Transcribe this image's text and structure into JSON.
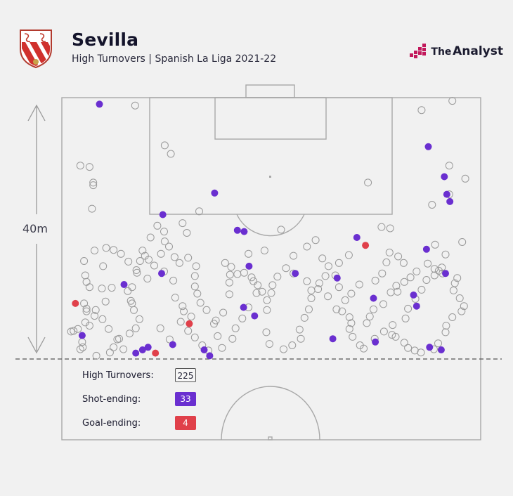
{
  "header": {
    "title": "Sevilla",
    "subtitle": "High Turnovers | Spanish La Liga 2021-22",
    "brand_prefix": "The",
    "brand_name": "Analyst"
  },
  "annotation": {
    "distance_label": "40m"
  },
  "legend": {
    "total_label": "High Turnovers:",
    "total_value": "225",
    "shot_label": "Shot-ending:",
    "shot_value": "33",
    "goal_label": "Goal-ending:",
    "goal_value": "4"
  },
  "colors": {
    "shot": "#6a2fd0",
    "goal": "#e0404a",
    "open": "#9a9a9a",
    "line": "#a8a8a8"
  },
  "chart_data": {
    "type": "scatter",
    "x_axis": "pitch width (m)",
    "y_axis": "distance from goal line (m)",
    "xlim": [
      0,
      68
    ],
    "ylim": [
      0,
      40
    ],
    "series": [
      {
        "name": "Goal-ending",
        "points": [
          [
            2.2,
            8.5
          ],
          [
            20.7,
            5.4
          ],
          [
            15.2,
            0.9
          ],
          [
            49.3,
            17.4
          ]
        ]
      },
      {
        "name": "Shot-ending",
        "points": [
          [
            6.1,
            39.0
          ],
          [
            24.8,
            25.4
          ],
          [
            16.4,
            22.1
          ],
          [
            28.5,
            19.7
          ],
          [
            29.6,
            19.5
          ],
          [
            30.4,
            14.2
          ],
          [
            37.9,
            13.1
          ],
          [
            47.9,
            18.6
          ],
          [
            50.6,
            9.3
          ],
          [
            44.7,
            12.4
          ],
          [
            29.5,
            7.9
          ],
          [
            31.3,
            6.6
          ],
          [
            16.2,
            13.1
          ],
          [
            10.1,
            11.4
          ],
          [
            3.3,
            3.6
          ],
          [
            14.0,
            1.8
          ],
          [
            13.1,
            1.4
          ],
          [
            12.0,
            0.9
          ],
          [
            18.0,
            2.2
          ],
          [
            23.1,
            1.4
          ],
          [
            24.0,
            0.5
          ],
          [
            44.0,
            3.1
          ],
          [
            50.9,
            2.6
          ],
          [
            59.7,
            1.8
          ],
          [
            61.6,
            1.4
          ],
          [
            57.6,
            8.1
          ],
          [
            57.1,
            9.8
          ],
          [
            59.2,
            16.8
          ],
          [
            59.5,
            32.5
          ],
          [
            62.1,
            27.9
          ],
          [
            62.5,
            25.2
          ],
          [
            63.0,
            24.1
          ],
          [
            62.3,
            13.1
          ]
        ]
      },
      {
        "name": "High Turnovers",
        "points": [
          [
            11.9,
            38.8
          ],
          [
            63.4,
            39.5
          ],
          [
            58.4,
            38.1
          ],
          [
            16.7,
            32.7
          ],
          [
            17.7,
            31.4
          ],
          [
            3.0,
            29.6
          ],
          [
            4.5,
            29.4
          ],
          [
            5.1,
            27.0
          ],
          [
            5.1,
            26.6
          ],
          [
            4.9,
            23.0
          ],
          [
            49.7,
            27.0
          ],
          [
            60.1,
            23.6
          ],
          [
            62.9,
            25.2
          ],
          [
            65.5,
            27.6
          ],
          [
            62.9,
            29.6
          ],
          [
            65.0,
            17.9
          ],
          [
            22.3,
            22.6
          ],
          [
            19.6,
            20.8
          ],
          [
            20.3,
            19.3
          ],
          [
            51.9,
            20.2
          ],
          [
            5.3,
            16.6
          ],
          [
            7.2,
            17.0
          ],
          [
            3.6,
            15.0
          ],
          [
            6.7,
            14.2
          ],
          [
            3.8,
            12.8
          ],
          [
            4.0,
            11.8
          ],
          [
            4.5,
            11.0
          ],
          [
            6.5,
            10.8
          ],
          [
            3.6,
            8.5
          ],
          [
            4.0,
            7.7
          ],
          [
            4.0,
            7.3
          ],
          [
            5.5,
            7.5
          ],
          [
            5.3,
            6.6
          ],
          [
            3.8,
            5.6
          ],
          [
            4.5,
            5.1
          ],
          [
            2.6,
            4.6
          ],
          [
            1.5,
            4.2
          ],
          [
            1.9,
            4.3
          ],
          [
            3.3,
            2.6
          ],
          [
            3.4,
            1.8
          ],
          [
            3.0,
            1.5
          ],
          [
            5.6,
            0.5
          ],
          [
            7.8,
            1.0
          ],
          [
            8.4,
            1.8
          ],
          [
            9.3,
            3.1
          ],
          [
            11.0,
            3.9
          ],
          [
            12.0,
            4.7
          ],
          [
            12.6,
            6.1
          ],
          [
            11.7,
            7.5
          ],
          [
            11.4,
            8.5
          ],
          [
            11.2,
            8.9
          ],
          [
            10.7,
            10.4
          ],
          [
            11.4,
            11.0
          ],
          [
            12.2,
            13.2
          ],
          [
            13.9,
            12.3
          ],
          [
            14.1,
            15.2
          ],
          [
            13.5,
            15.8
          ],
          [
            15.0,
            14.3
          ],
          [
            16.1,
            16.1
          ],
          [
            16.6,
            13.4
          ],
          [
            18.1,
            12.0
          ],
          [
            18.4,
            9.4
          ],
          [
            19.6,
            8.1
          ],
          [
            19.8,
            7.3
          ],
          [
            19.3,
            5.7
          ],
          [
            20.5,
            4.3
          ],
          [
            21.6,
            3.3
          ],
          [
            22.8,
            2.1
          ],
          [
            23.8,
            1.3
          ],
          [
            26.0,
            1.7
          ],
          [
            25.3,
            3.5
          ],
          [
            24.7,
            5.4
          ],
          [
            26.2,
            7.1
          ],
          [
            27.2,
            9.9
          ],
          [
            27.2,
            11.7
          ],
          [
            27.3,
            12.9
          ],
          [
            27.5,
            14.1
          ],
          [
            29.6,
            13.2
          ],
          [
            30.8,
            12.5
          ],
          [
            31.8,
            11.3
          ],
          [
            32.5,
            10.3
          ],
          [
            33.3,
            9.0
          ],
          [
            33.3,
            7.5
          ],
          [
            33.2,
            4.1
          ],
          [
            33.7,
            2.3
          ],
          [
            36.0,
            1.5
          ],
          [
            37.4,
            2.1
          ],
          [
            38.8,
            3.1
          ],
          [
            38.6,
            4.5
          ],
          [
            39.4,
            6.3
          ],
          [
            40.1,
            7.6
          ],
          [
            40.5,
            9.3
          ],
          [
            40.5,
            10.5
          ],
          [
            41.8,
            11.6
          ],
          [
            42.8,
            12.7
          ],
          [
            43.3,
            14.2
          ],
          [
            43.2,
            9.6
          ],
          [
            44.6,
            7.6
          ],
          [
            45.5,
            7.3
          ],
          [
            46.7,
            6.4
          ],
          [
            47.0,
            5.5
          ],
          [
            46.7,
            4.6
          ],
          [
            47.2,
            3.4
          ],
          [
            48.4,
            2.1
          ],
          [
            49.0,
            1.6
          ],
          [
            53.6,
            3.7
          ],
          [
            54.2,
            3.4
          ],
          [
            55.6,
            2.5
          ],
          [
            56.2,
            1.7
          ],
          [
            57.3,
            1.3
          ],
          [
            58.3,
            1.0
          ],
          [
            60.4,
            1.5
          ],
          [
            61.1,
            2.4
          ],
          [
            62.3,
            4.1
          ],
          [
            62.4,
            5.1
          ],
          [
            63.4,
            6.4
          ],
          [
            64.9,
            7.3
          ],
          [
            65.3,
            8.1
          ],
          [
            64.6,
            9.3
          ],
          [
            63.6,
            10.5
          ],
          [
            63.8,
            11.6
          ],
          [
            64.2,
            12.4
          ],
          [
            61.8,
            13.1
          ],
          [
            60.5,
            13.8
          ],
          [
            59.4,
            14.6
          ],
          [
            57.6,
            13.4
          ],
          [
            56.6,
            12.5
          ],
          [
            55.6,
            11.8
          ],
          [
            54.3,
            11.2
          ],
          [
            53.4,
            10.2
          ],
          [
            52.2,
            8.4
          ],
          [
            50.6,
            7.6
          ],
          [
            50.0,
            6.5
          ],
          [
            49.5,
            5.5
          ],
          [
            50.8,
            3.1
          ],
          [
            52.3,
            4.2
          ],
          [
            53.7,
            5.2
          ],
          [
            55.8,
            6.2
          ],
          [
            56.2,
            7.7
          ],
          [
            57.4,
            9.2
          ],
          [
            58.4,
            10.6
          ],
          [
            59.2,
            12.1
          ],
          [
            60.5,
            12.8
          ],
          [
            61.2,
            13.5
          ],
          [
            61.7,
            14.0
          ],
          [
            62.3,
            16.0
          ],
          [
            60.6,
            17.5
          ],
          [
            55.5,
            14.7
          ],
          [
            54.6,
            15.7
          ],
          [
            53.2,
            16.3
          ],
          [
            52.7,
            14.8
          ],
          [
            52.0,
            13.1
          ],
          [
            50.9,
            12.0
          ],
          [
            48.3,
            11.4
          ],
          [
            47.0,
            10.0
          ],
          [
            46.0,
            9.0
          ],
          [
            45.0,
            11.0
          ],
          [
            44.4,
            12.8
          ],
          [
            42.3,
            15.4
          ],
          [
            41.2,
            18.2
          ],
          [
            39.8,
            17.2
          ],
          [
            37.6,
            15.8
          ],
          [
            36.4,
            13.9
          ],
          [
            35.0,
            12.6
          ],
          [
            34.2,
            11.3
          ],
          [
            34.0,
            10.1
          ],
          [
            31.6,
            10.1
          ],
          [
            30.3,
            7.9
          ],
          [
            29.3,
            6.2
          ],
          [
            28.2,
            4.7
          ],
          [
            27.7,
            3.1
          ],
          [
            25.0,
            5.9
          ],
          [
            23.5,
            7.5
          ],
          [
            22.5,
            8.6
          ],
          [
            22.0,
            10.0
          ],
          [
            21.6,
            11.1
          ],
          [
            21.6,
            12.7
          ],
          [
            21.8,
            14.2
          ],
          [
            20.5,
            15.5
          ],
          [
            19.1,
            14.7
          ],
          [
            18.3,
            15.6
          ],
          [
            17.4,
            17.2
          ],
          [
            16.7,
            18.0
          ],
          [
            16.6,
            19.5
          ],
          [
            15.5,
            20.4
          ],
          [
            14.4,
            18.6
          ],
          [
            13.1,
            16.6
          ],
          [
            12.7,
            15.0
          ],
          [
            12.1,
            13.6
          ],
          [
            10.8,
            14.9
          ],
          [
            9.6,
            16.1
          ],
          [
            8.4,
            16.7
          ],
          [
            8.1,
            10.9
          ],
          [
            7.1,
            8.8
          ],
          [
            6.6,
            6.1
          ],
          [
            7.6,
            4.6
          ],
          [
            9.0,
            3.0
          ],
          [
            10.0,
            1.5
          ],
          [
            16.0,
            4.7
          ],
          [
            17.5,
            3.0
          ],
          [
            21.0,
            6.5
          ],
          [
            26.5,
            14.7
          ],
          [
            28.5,
            13.0
          ],
          [
            30.3,
            16.1
          ],
          [
            31.1,
            11.9
          ],
          [
            32.9,
            16.6
          ],
          [
            35.6,
            19.8
          ],
          [
            37.6,
            13.1
          ],
          [
            39.8,
            11.9
          ],
          [
            41.6,
            10.7
          ],
          [
            45.0,
            14.7
          ],
          [
            46.6,
            15.9
          ],
          [
            53.3,
            20.0
          ],
          [
            54.5,
            10.3
          ]
        ]
      }
    ]
  }
}
